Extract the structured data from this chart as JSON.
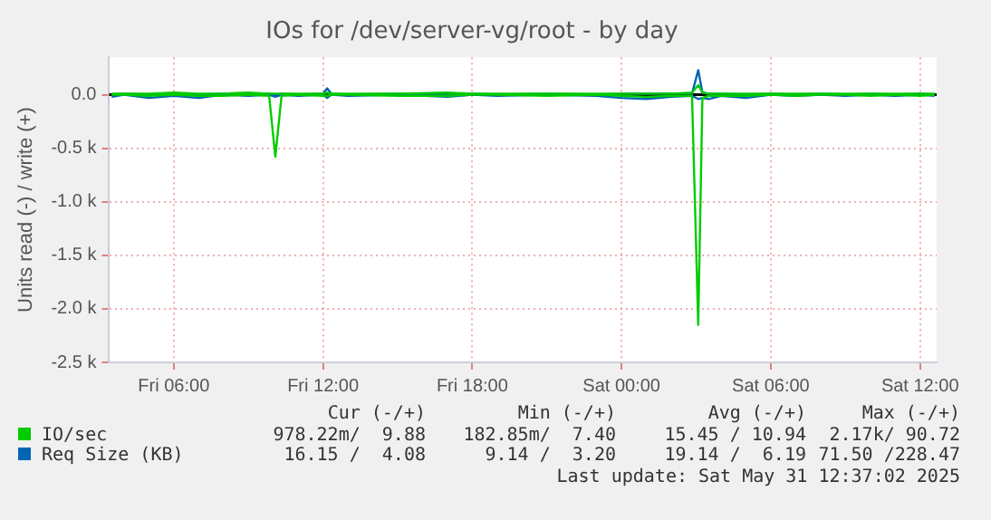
{
  "chart_data": {
    "type": "line",
    "title": "IOs for /dev/server-vg/root - by day",
    "ylabel": "Units read (-) / write (+)",
    "x": [
      "2025-05-30T03:30",
      "2025-05-30T04:00",
      "2025-05-30T05:00",
      "2025-05-30T06:00",
      "2025-05-30T07:00",
      "2025-05-30T08:00",
      "2025-05-30T09:00",
      "2025-05-30T09:50",
      "2025-05-30T10:05",
      "2025-05-30T10:20",
      "2025-05-30T11:00",
      "2025-05-30T12:00",
      "2025-05-30T12:10",
      "2025-05-30T12:20",
      "2025-05-30T13:00",
      "2025-05-30T15:00",
      "2025-05-30T17:00",
      "2025-05-30T18:00",
      "2025-05-30T19:00",
      "2025-05-30T21:00",
      "2025-05-30T23:00",
      "2025-05-31T00:00",
      "2025-05-31T01:00",
      "2025-05-31T02:00",
      "2025-05-31T02:50",
      "2025-05-31T03:05",
      "2025-05-31T03:15",
      "2025-05-31T03:30",
      "2025-05-31T04:00",
      "2025-05-31T05:00",
      "2025-05-31T06:00",
      "2025-05-31T07:00",
      "2025-05-31T08:00",
      "2025-05-31T09:00",
      "2025-05-31T10:00",
      "2025-05-31T11:00",
      "2025-05-31T12:00",
      "2025-05-31T12:35"
    ],
    "series": [
      {
        "name": "IO/sec",
        "color": "#00cc00",
        "values": [
          0,
          0,
          -10,
          0,
          -10,
          -10,
          0,
          -10,
          -580,
          -10,
          0,
          -10,
          -10,
          0,
          0,
          -10,
          -10,
          0,
          0,
          -10,
          0,
          -10,
          -20,
          -10,
          -10,
          -2150,
          -30,
          -10,
          -10,
          -10,
          0,
          -10,
          0,
          0,
          -10,
          0,
          -10,
          0
        ]
      },
      {
        "color": "#00cc00",
        "values": [
          10,
          10,
          10,
          20,
          10,
          10,
          20,
          10,
          10,
          10,
          10,
          10,
          20,
          10,
          10,
          10,
          20,
          10,
          10,
          10,
          10,
          10,
          10,
          10,
          20,
          90,
          20,
          10,
          10,
          10,
          10,
          10,
          10,
          10,
          10,
          10,
          10,
          10
        ]
      },
      {
        "name": "Req Size (KB)",
        "color": "#0066b3",
        "values": [
          -20,
          0,
          -30,
          -10,
          -30,
          0,
          -10,
          0,
          -20,
          0,
          -10,
          0,
          -30,
          0,
          -10,
          0,
          -20,
          0,
          -10,
          0,
          -10,
          -30,
          -40,
          -20,
          -10,
          -40,
          -30,
          -40,
          -10,
          -30,
          0,
          -10,
          0,
          -10,
          0,
          -10,
          0,
          -10
        ]
      },
      {
        "color": "#0066b3",
        "values": [
          0,
          10,
          0,
          10,
          0,
          10,
          0,
          10,
          0,
          10,
          0,
          10,
          60,
          10,
          0,
          10,
          0,
          10,
          0,
          10,
          0,
          10,
          10,
          10,
          10,
          230,
          20,
          10,
          10,
          0,
          10,
          0,
          10,
          0,
          10,
          0,
          10,
          0
        ]
      }
    ],
    "xlim": [
      "2025-05-30T03:24",
      "2025-05-31T12:40"
    ],
    "xticks": [
      {
        "value": "2025-05-30T06:00",
        "label": "Fri 06:00"
      },
      {
        "value": "2025-05-30T12:00",
        "label": "Fri 12:00"
      },
      {
        "value": "2025-05-30T18:00",
        "label": "Fri 18:00"
      },
      {
        "value": "2025-05-31T00:00",
        "label": "Sat 00:00"
      },
      {
        "value": "2025-05-31T06:00",
        "label": "Sat 06:00"
      },
      {
        "value": "2025-05-31T12:00",
        "label": "Sat 12:00"
      }
    ],
    "ylim": [
      -2500,
      350
    ],
    "yticks": [
      {
        "value": -2500,
        "label": "-2.5 k"
      },
      {
        "value": -2000,
        "label": "-2.0 k"
      },
      {
        "value": -1500,
        "label": "-1.5 k"
      },
      {
        "value": -1000,
        "label": "-1.0 k"
      },
      {
        "value": -500,
        "label": "-0.5 k"
      },
      {
        "value": 0,
        "label": "0.0"
      }
    ],
    "ref_lines": [
      {
        "axis": "y",
        "value": 0,
        "color": "#000000"
      }
    ],
    "grid": true,
    "legend": "bottom",
    "marker": "none",
    "line_style": "solid",
    "annotations": [
      "Cur (-/+)",
      "Min (-/+)",
      "Avg (-/+)",
      "Max (-/+)",
      "978.22m/  9.88",
      "182.85m/  7.40",
      "15.45 / 10.94",
      "2.17k/ 90.72",
      "16.15 /  4.08",
      "9.14 /  3.20",
      "19.14 /  6.19",
      "71.50 /228.47",
      "Last update: Sat May 31 12:37:02 2025"
    ]
  }
}
